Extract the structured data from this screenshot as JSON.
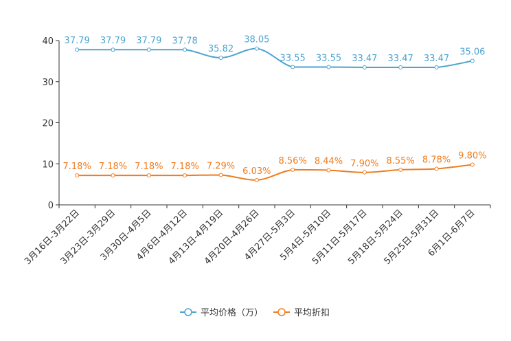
{
  "chart_data": {
    "type": "line",
    "title": "",
    "xlabel": "",
    "ylabel": "",
    "ylim": [
      0,
      40
    ],
    "yticks": [
      0,
      10,
      20,
      30,
      40
    ],
    "grid": false,
    "legend_position": "bottom-center",
    "categories": [
      "3月16日-3月22日",
      "3月23日-3月29日",
      "3月30日-4月5日",
      "4月6日-4月12日",
      "4月13日-4月19日",
      "4月20日-4月26日",
      "4月27日-5月3日",
      "5月4日-5月10日",
      "5月11日-5月17日",
      "5月18日-5月24日",
      "5月25日-5月31日",
      "6月1日-6月7日"
    ],
    "series": [
      {
        "name": "平均价格（万）",
        "color": "#4ba3d0",
        "values": [
          37.79,
          37.79,
          37.79,
          37.78,
          35.82,
          38.05,
          33.55,
          33.55,
          33.47,
          33.47,
          33.47,
          35.06
        ],
        "labels": [
          "37.79",
          "37.79",
          "37.79",
          "37.78",
          "35.82",
          "38.05",
          "33.55",
          "33.55",
          "33.47",
          "33.47",
          "33.47",
          "35.06"
        ]
      },
      {
        "name": "平均折扣",
        "color": "#f07c1e",
        "values": [
          7.18,
          7.18,
          7.18,
          7.18,
          7.29,
          6.03,
          8.56,
          8.44,
          7.9,
          8.55,
          8.78,
          9.8
        ],
        "labels": [
          "7.18%",
          "7.18%",
          "7.18%",
          "7.18%",
          "7.29%",
          "6.03%",
          "8.56%",
          "8.44%",
          "7.90%",
          "8.55%",
          "8.78%",
          "9.80%"
        ]
      }
    ]
  }
}
